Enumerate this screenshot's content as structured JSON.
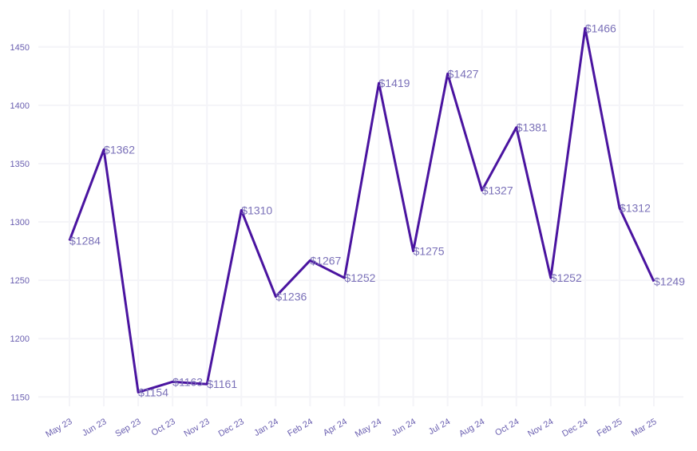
{
  "chart_data": {
    "type": "line",
    "title": "",
    "xlabel": "",
    "ylabel": "",
    "categories": [
      "May 23",
      "Jun 23",
      "Sep 23",
      "Oct 23",
      "Nov 23",
      "Dec 23",
      "Jan 24",
      "Feb 24",
      "Apr 24",
      "May 24",
      "Jun 24",
      "Jul 24",
      "Aug 24",
      "Oct 24",
      "Nov 24",
      "Dec 24",
      "Feb 25",
      "Mar 25"
    ],
    "values": [
      1284,
      1362,
      1154,
      1163,
      1161,
      1310,
      1236,
      1267,
      1252,
      1419,
      1275,
      1427,
      1327,
      1381,
      1252,
      1466,
      1312,
      1249
    ],
    "data_labels": [
      "$1284",
      "$1362",
      "$1154",
      "$1163",
      "$1161",
      "$1310",
      "$1236",
      "$1267",
      "$1252",
      "$1419",
      "$1275",
      "$1427",
      "$1327",
      "$1381",
      "$1252",
      "$1466",
      "$1312",
      "$1249"
    ],
    "ylim": [
      1142,
      1482
    ],
    "yticks": [
      1150,
      1200,
      1250,
      1300,
      1350,
      1400,
      1450
    ],
    "ytick_labels": [
      "1150",
      "1200",
      "1250",
      "1300",
      "1350",
      "1400",
      "1450"
    ],
    "grid": true,
    "legend": "none",
    "line_color": "#4a14a0",
    "label_color": "#7a70b8",
    "tick_color": "#6a5fb0"
  }
}
